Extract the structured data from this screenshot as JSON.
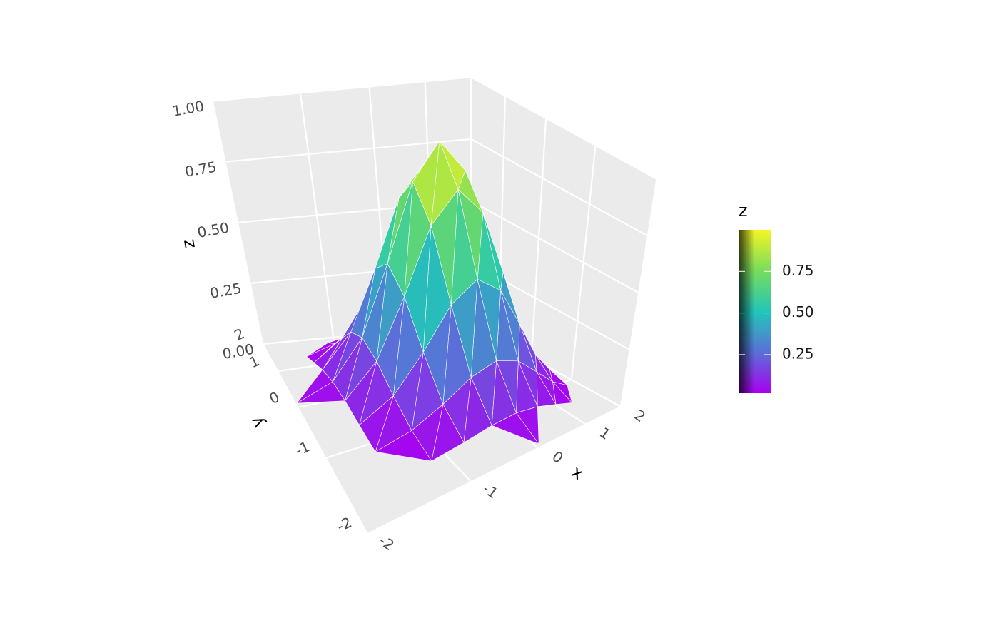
{
  "chart_data": {
    "type": "surface",
    "x": [
      -2,
      -1.6,
      -1.2,
      -0.8,
      -0.4,
      0,
      0.4,
      0.8,
      1.2,
      1.6,
      2
    ],
    "y": [
      -2,
      -1.6,
      -1.2,
      -0.8,
      -0.4,
      0,
      0.4,
      0.8,
      1.2,
      1.6,
      2
    ],
    "z": [
      [
        null,
        null,
        null,
        null,
        null,
        0.018,
        null,
        null,
        null,
        null,
        null
      ],
      [
        null,
        null,
        0.018,
        0.041,
        0.066,
        0.077,
        0.066,
        0.041,
        0.018,
        null,
        null
      ],
      [
        null,
        0.018,
        0.056,
        0.125,
        0.202,
        0.237,
        0.202,
        0.125,
        0.056,
        0.018,
        null
      ],
      [
        null,
        0.041,
        0.125,
        0.278,
        0.449,
        0.527,
        0.449,
        0.278,
        0.125,
        0.041,
        null
      ],
      [
        null,
        0.066,
        0.202,
        0.449,
        0.726,
        0.852,
        0.726,
        0.449,
        0.202,
        0.066,
        null
      ],
      [
        0.018,
        0.077,
        0.237,
        0.527,
        0.852,
        1,
        0.852,
        0.527,
        0.237,
        0.077,
        0.018
      ],
      [
        null,
        0.066,
        0.202,
        0.449,
        0.726,
        0.852,
        0.726,
        0.449,
        0.202,
        0.066,
        null
      ],
      [
        null,
        0.041,
        0.125,
        0.278,
        0.449,
        0.527,
        0.449,
        0.278,
        0.125,
        0.041,
        null
      ],
      [
        null,
        0.018,
        0.056,
        0.125,
        0.202,
        0.237,
        0.202,
        0.125,
        0.056,
        0.018,
        null
      ],
      [
        null,
        null,
        0.018,
        0.041,
        0.066,
        0.077,
        0.066,
        0.041,
        0.018,
        null,
        null
      ],
      [
        null,
        null,
        null,
        null,
        null,
        0.018,
        null,
        null,
        null,
        null,
        null
      ]
    ],
    "xlim": [
      -2,
      2
    ],
    "ylim": [
      -2,
      2
    ],
    "zlim": [
      0,
      1
    ],
    "xticks": [
      -2,
      -1,
      0,
      1,
      2
    ],
    "yticks": [
      -2,
      -1,
      0,
      1,
      2
    ],
    "zticks": [
      {
        "value": 0,
        "label": "0.00"
      },
      0.25,
      {
        "value": 0.5,
        "label": "0.50"
      },
      0.75,
      {
        "value": 1,
        "label": "1.00"
      }
    ],
    "x_label": "x",
    "y_label": "y",
    "z_label": "z",
    "colors": [
      "#a800f0",
      "#5a70d8",
      "#22c6b8",
      "#78dc5c",
      "#f6f524"
    ],
    "grid": true,
    "legend": {
      "title": "z",
      "ticks": [
        0.25,
        {
          "value": 0.5,
          "label": "0.50"
        },
        0.75
      ]
    }
  }
}
